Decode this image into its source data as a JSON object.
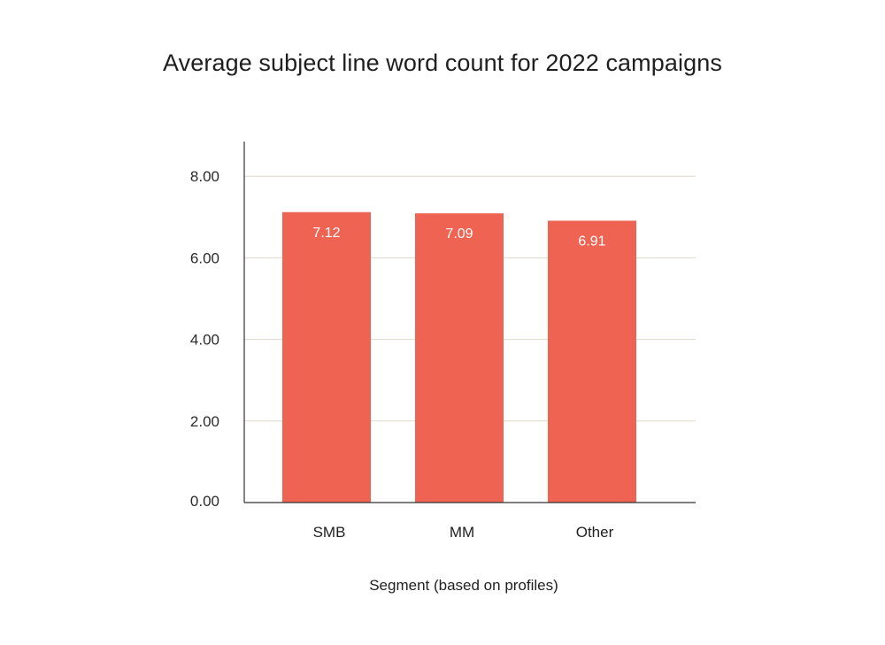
{
  "chart_data": {
    "type": "bar",
    "title": "Average subject line word count for 2022 campaigns",
    "xlabel": "Segment (based on profiles)",
    "ylabel": "",
    "categories": [
      "SMB",
      "MM",
      "Other"
    ],
    "values": [
      7.12,
      7.09,
      6.91
    ],
    "data_labels": [
      "7.12",
      "7.09",
      "6.91"
    ],
    "ylim": [
      0,
      8
    ],
    "yticks": [
      0,
      2,
      4,
      6,
      8
    ],
    "ytick_labels": [
      "0.00",
      "2.00",
      "4.00",
      "6.00",
      "8.00"
    ],
    "grid": true,
    "legend": "none",
    "colors": {
      "bar": "#EE6352",
      "grid": "#DDD8CC",
      "axis": "#333333"
    }
  }
}
